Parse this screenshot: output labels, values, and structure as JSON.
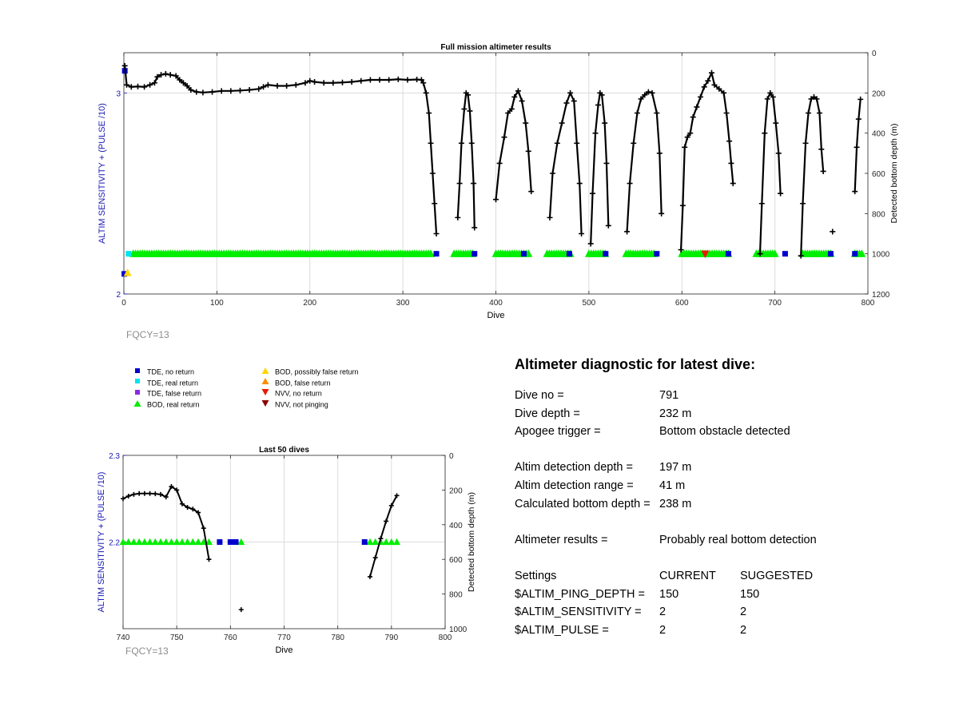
{
  "chart_data": [
    {
      "type": "scatter",
      "title": "Full mission altimeter results",
      "xlabel": "Dive",
      "ylabel_left": "ALTIM SENSITIVITY + (PULSE /10)",
      "ylabel_right": "Detected bottom depth (m)",
      "xlim": [
        0,
        800
      ],
      "xticks": [
        0,
        100,
        200,
        300,
        400,
        500,
        600,
        700,
        800
      ],
      "ylim_left": [
        2,
        3.2
      ],
      "yticks_left": [
        2,
        3
      ],
      "ylim_right": [
        1200,
        0
      ],
      "yticks_right": [
        0,
        200,
        400,
        600,
        800,
        1000,
        1200
      ],
      "grid": true,
      "annotation": "FQCY=13",
      "bottom_depth_series": [
        {
          "name": "Detected bottom depth",
          "points": [
            [
              1,
              65
            ],
            [
              3,
              160
            ],
            [
              8,
              170
            ],
            [
              15,
              168
            ],
            [
              22,
              170
            ],
            [
              28,
              160
            ],
            [
              33,
              150
            ],
            [
              36,
              120
            ],
            [
              40,
              110
            ],
            [
              45,
              105
            ],
            [
              50,
              110
            ],
            [
              56,
              115
            ],
            [
              60,
              135
            ],
            [
              64,
              150
            ],
            [
              68,
              165
            ],
            [
              72,
              185
            ],
            [
              78,
              195
            ],
            [
              85,
              198
            ],
            [
              95,
              195
            ],
            [
              105,
              190
            ],
            [
              115,
              190
            ],
            [
              125,
              188
            ],
            [
              135,
              185
            ],
            [
              145,
              180
            ],
            [
              150,
              170
            ],
            [
              155,
              160
            ],
            [
              165,
              165
            ],
            [
              175,
              165
            ],
            [
              185,
              160
            ],
            [
              195,
              150
            ],
            [
              200,
              140
            ],
            [
              205,
              145
            ],
            [
              215,
              150
            ],
            [
              225,
              150
            ],
            [
              235,
              148
            ],
            [
              245,
              145
            ],
            [
              255,
              140
            ],
            [
              265,
              135
            ],
            [
              275,
              135
            ],
            [
              285,
              135
            ],
            [
              295,
              132
            ],
            [
              305,
              135
            ],
            [
              315,
              133
            ],
            [
              320,
              135
            ],
            [
              322,
              150
            ],
            [
              325,
              200
            ],
            [
              328,
              300
            ],
            [
              330,
              450
            ],
            [
              332,
              600
            ],
            [
              334,
              750
            ],
            [
              336,
              900
            ]
          ]
        },
        {
          "name": "Detected bottom depth",
          "points": [
            [
              359,
              820
            ],
            [
              361,
              650
            ],
            [
              363,
              450
            ],
            [
              366,
              280
            ],
            [
              368,
              200
            ],
            [
              370,
              210
            ],
            [
              372,
              290
            ],
            [
              374,
              450
            ],
            [
              376,
              650
            ],
            [
              377,
              870
            ]
          ]
        },
        {
          "name": "Detected bottom depth",
          "points": [
            [
              400,
              730
            ],
            [
              404,
              550
            ],
            [
              409,
              420
            ],
            [
              413,
              300
            ],
            [
              417,
              280
            ],
            [
              420,
              220
            ],
            [
              424,
              190
            ],
            [
              428,
              240
            ],
            [
              432,
              350
            ],
            [
              435,
              490
            ],
            [
              438,
              690
            ]
          ]
        },
        {
          "name": "Detected bottom depth",
          "points": [
            [
              458,
              820
            ],
            [
              461,
              600
            ],
            [
              466,
              450
            ],
            [
              471,
              350
            ],
            [
              476,
              250
            ],
            [
              480,
              200
            ],
            [
              484,
              240
            ],
            [
              487,
              450
            ],
            [
              490,
              650
            ],
            [
              492,
              900
            ]
          ]
        },
        {
          "name": "Detected bottom depth",
          "points": [
            [
              502,
              950
            ],
            [
              504,
              700
            ],
            [
              507,
              400
            ],
            [
              510,
              260
            ],
            [
              512,
              200
            ],
            [
              514,
              210
            ],
            [
              517,
              350
            ],
            [
              519,
              550
            ],
            [
              521,
              860
            ]
          ]
        },
        {
          "name": "Detected bottom depth",
          "points": [
            [
              541,
              890
            ],
            [
              544,
              650
            ],
            [
              548,
              450
            ],
            [
              552,
              300
            ],
            [
              556,
              230
            ],
            [
              560,
              210
            ],
            [
              564,
              195
            ],
            [
              568,
              200
            ],
            [
              573,
              300
            ],
            [
              576,
              500
            ],
            [
              578,
              800
            ]
          ]
        },
        {
          "name": "Detected bottom depth",
          "points": [
            [
              599,
              980
            ],
            [
              601,
              760
            ],
            [
              603,
              470
            ],
            [
              606,
              420
            ],
            [
              609,
              400
            ],
            [
              612,
              320
            ],
            [
              616,
              270
            ],
            [
              620,
              220
            ],
            [
              624,
              170
            ],
            [
              628,
              140
            ],
            [
              632,
              100
            ],
            [
              635,
              160
            ],
            [
              640,
              180
            ],
            [
              645,
              200
            ],
            [
              648,
              300
            ],
            [
              651,
              440
            ],
            [
              653,
              550
            ],
            [
              655,
              650
            ]
          ]
        },
        {
          "name": "Detected bottom depth",
          "points": [
            [
              684,
              1000
            ],
            [
              686,
              750
            ],
            [
              689,
              400
            ],
            [
              692,
              230
            ],
            [
              695,
              200
            ],
            [
              698,
              220
            ],
            [
              701,
              350
            ],
            [
              704,
              500
            ],
            [
              706,
              700
            ]
          ]
        },
        {
          "name": "Detected bottom depth",
          "points": [
            [
              728,
              1010
            ],
            [
              730,
              750
            ],
            [
              733,
              450
            ],
            [
              736,
              300
            ],
            [
              739,
              230
            ],
            [
              742,
              220
            ],
            [
              745,
              230
            ],
            [
              748,
              300
            ],
            [
              750,
              480
            ],
            [
              752,
              590
            ]
          ]
        },
        {
          "name": "Detected bottom depth",
          "points": [
            [
              786,
              690
            ],
            [
              788,
              470
            ],
            [
              790,
              330
            ],
            [
              792,
              232
            ]
          ]
        },
        {
          "name": "Detected bottom depth",
          "points": [
            [
              762,
              890
            ]
          ]
        }
      ],
      "tde_no_return": [
        [
          0,
          100
        ],
        [
          0,
          2.1
        ],
        [
          336,
          1000
        ],
        [
          377,
          1000
        ],
        [
          430,
          1000
        ],
        [
          479,
          1000
        ],
        [
          518,
          1000
        ],
        [
          573,
          1000
        ],
        [
          650,
          1000
        ],
        [
          711,
          1000
        ],
        [
          760,
          1000
        ],
        [
          786,
          1000
        ]
      ],
      "tde_real_return": [
        [
          5,
          1000
        ]
      ],
      "bod_real_return_ranges": [
        [
          10,
          330
        ],
        [
          355,
          375
        ],
        [
          400,
          435
        ],
        [
          455,
          480
        ],
        [
          500,
          518
        ],
        [
          540,
          570
        ],
        [
          600,
          650
        ],
        [
          680,
          700
        ],
        [
          730,
          760
        ],
        [
          786,
          795
        ]
      ],
      "bod_possibly_false": [
        [
          4,
          2.1
        ]
      ],
      "nvv_no_return": [
        [
          625,
          1000
        ]
      ]
    },
    {
      "type": "scatter",
      "title": "Last 50 dives",
      "xlabel": "Dive",
      "ylabel_left": "ALTIM SENSITIVITY + (PULSE /10)",
      "ylabel_right": "Detected bottom depth (m)",
      "xlim": [
        740,
        800
      ],
      "xticks": [
        740,
        750,
        760,
        770,
        780,
        790,
        800
      ],
      "ylim_left": [
        2.1,
        2.3
      ],
      "yticks_left": [
        2.2,
        2.3
      ],
      "ylim_right": [
        1000,
        0
      ],
      "yticks_right": [
        0,
        200,
        400,
        600,
        800,
        1000
      ],
      "grid": true,
      "annotation": "FQCY=13",
      "bottom_depth_series": [
        {
          "name": "Detected bottom depth",
          "points": [
            [
              740,
              250
            ],
            [
              741,
              235
            ],
            [
              742,
              225
            ],
            [
              743,
              220
            ],
            [
              744,
              220
            ],
            [
              745,
              220
            ],
            [
              746,
              222
            ],
            [
              747,
              225
            ],
            [
              748,
              240
            ],
            [
              749,
              180
            ],
            [
              750,
              200
            ],
            [
              751,
              280
            ],
            [
              752,
              300
            ],
            [
              753,
              310
            ],
            [
              754,
              330
            ],
            [
              755,
              420
            ],
            [
              756,
              600
            ]
          ]
        },
        {
          "name": "Detected bottom depth",
          "points": [
            [
              786,
              700
            ],
            [
              787,
              590
            ],
            [
              788,
              480
            ],
            [
              789,
              380
            ],
            [
              790,
              290
            ],
            [
              791,
              232
            ]
          ]
        },
        {
          "name": "Detected bottom depth",
          "points": [
            [
              762,
              890
            ]
          ]
        }
      ],
      "bod_real_return": [
        740,
        741,
        742,
        743,
        744,
        745,
        746,
        747,
        748,
        749,
        750,
        751,
        752,
        753,
        754,
        755,
        756,
        762,
        786,
        787,
        788,
        789,
        790,
        791
      ],
      "tde_no_return": [
        758,
        760,
        761,
        785
      ]
    }
  ],
  "legend": {
    "items": [
      {
        "label": "TDE, no return",
        "symbol": "square",
        "color": "#0000cd"
      },
      {
        "label": "TDE, real return",
        "symbol": "square",
        "color": "#00e5ee"
      },
      {
        "label": "TDE, false return",
        "symbol": "square",
        "color": "#8a2be2"
      },
      {
        "label": "BOD, real return",
        "symbol": "triangle-up",
        "color": "#00ee00"
      },
      {
        "label": "BOD, possibly false return",
        "symbol": "triangle-up",
        "color": "#ffd700"
      },
      {
        "label": "BOD, false return",
        "symbol": "triangle-up",
        "color": "#ff8c00"
      },
      {
        "label": "NVV, no return",
        "symbol": "triangle-down",
        "color": "#e51c00"
      },
      {
        "label": "NVV, not pinging",
        "symbol": "triangle-down",
        "color": "#8b0000"
      }
    ]
  },
  "diagnostic": {
    "title": "Altimeter diagnostic for latest dive:",
    "dive_no_label": "Dive no =",
    "dive_no": "791",
    "dive_depth_label": "Dive depth =",
    "dive_depth": "232 m",
    "apogee_label": "Apogee trigger =",
    "apogee": "Bottom obstacle detected",
    "altim_depth_label": "Altim detection depth =",
    "altim_depth": "197 m",
    "altim_range_label": "Altim detection range =",
    "altim_range": "41 m",
    "calc_bottom_label": "Calculated bottom depth =",
    "calc_bottom": "238 m",
    "results_label": "Altimeter results =",
    "results": "Probably real bottom detection",
    "settings_label": "Settings",
    "current_label": "CURRENT",
    "suggested_label": "SUGGESTED",
    "settings": [
      {
        "name": "$ALTIM_PING_DEPTH =",
        "current": "150",
        "suggested": "150"
      },
      {
        "name": "$ALTIM_SENSITIVITY =",
        "current": "2",
        "suggested": "2"
      },
      {
        "name": "$ALTIM_PULSE =",
        "current": "2",
        "suggested": "2"
      }
    ]
  },
  "colors": {
    "left_axis": "#1a1ab3",
    "depth_line": "#000000",
    "grid": "#dcdcdc",
    "fqcy_text": "#8c8c8c"
  }
}
